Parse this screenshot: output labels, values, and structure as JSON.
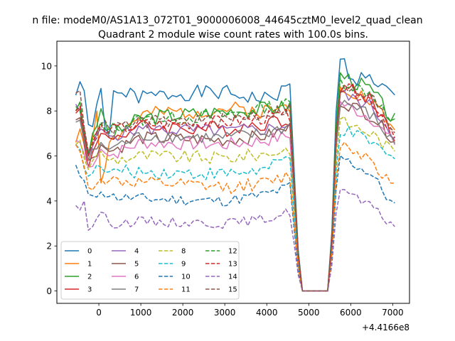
{
  "header_line": "n file: modeM0/AS1A13_072T01_9000006008_44645cztM0_level2_quad_clean",
  "chart_data": {
    "type": "line",
    "title": "Quadrant 2 module wise count rates with 100.0s bins.",
    "xlabel": "",
    "ylabel": "",
    "x_offset_label": "+4.4166e8",
    "xlim": [
      -1000,
      7400
    ],
    "ylim": [
      -0.55,
      11.1
    ],
    "xticks": [
      0,
      1000,
      2000,
      3000,
      4000,
      5000,
      6000,
      7000
    ],
    "xtick_labels": [
      "0",
      "1000",
      "2000",
      "3000",
      "4000",
      "5000",
      "6000",
      "7000"
    ],
    "yticks": [
      0,
      2,
      4,
      6,
      8,
      10
    ],
    "ytick_labels": [
      "0",
      "2",
      "4",
      "6",
      "8",
      "10"
    ],
    "grid": false,
    "legend_placement": "lower-left",
    "x_bins": {
      "start": -550,
      "step": 100,
      "count": 77
    },
    "gap": {
      "x": [
        4800,
        5500
      ],
      "value": 0.0
    },
    "series": [
      {
        "name": "0",
        "color": "#1f77b4",
        "dash": "solid",
        "base1": 8.6,
        "base2": 9.8,
        "noise": 0.35,
        "seed": 1,
        "points": [
          [
            -550,
            8.7
          ],
          [
            -450,
            9.3
          ],
          [
            -350,
            8.9
          ],
          [
            -250,
            7.4
          ],
          [
            -150,
            7.3
          ],
          [
            -50,
            8.3
          ],
          [
            50,
            9.0
          ],
          [
            150,
            7.2
          ],
          [
            250,
            7.0
          ],
          [
            350,
            8.9
          ],
          [
            450,
            8.8
          ],
          [
            1000,
            8.6
          ],
          [
            2000,
            8.8
          ],
          [
            3000,
            8.8
          ],
          [
            4000,
            8.5
          ],
          [
            4500,
            9.0
          ],
          [
            5700,
            10.6
          ],
          [
            5800,
            10.3
          ],
          [
            6000,
            9.5
          ],
          [
            6500,
            9.4
          ],
          [
            6850,
            9.1
          ],
          [
            7000,
            8.5
          ]
        ]
      },
      {
        "name": "1",
        "color": "#ff7f0e",
        "dash": "solid",
        "base1": 7.9,
        "base2": 8.7,
        "noise": 0.35,
        "seed": 2,
        "points": [
          [
            -550,
            6.6
          ],
          [
            -450,
            7.2
          ],
          [
            -250,
            6.0
          ],
          [
            -50,
            8.0
          ],
          [
            50,
            4.8
          ],
          [
            250,
            6.6
          ],
          [
            1000,
            7.8
          ],
          [
            3000,
            8.1
          ],
          [
            4000,
            8.0
          ],
          [
            4500,
            8.2
          ],
          [
            5700,
            9.3
          ],
          [
            6500,
            8.4
          ],
          [
            7000,
            7.3
          ]
        ]
      },
      {
        "name": "2",
        "color": "#2ca02c",
        "dash": "solid",
        "base1": 7.9,
        "base2": 9.0,
        "noise": 0.35,
        "seed": 3,
        "points": [
          [
            -550,
            8.0
          ],
          [
            -450,
            8.4
          ],
          [
            -250,
            6.0
          ],
          [
            50,
            8.1
          ],
          [
            250,
            6.8
          ],
          [
            1000,
            7.7
          ],
          [
            3000,
            8.0
          ],
          [
            4000,
            8.1
          ],
          [
            4500,
            8.2
          ],
          [
            5700,
            9.7
          ],
          [
            6500,
            8.9
          ],
          [
            7000,
            7.6
          ]
        ]
      },
      {
        "name": "3",
        "color": "#d62728",
        "dash": "solid",
        "base1": 7.3,
        "base2": 8.5,
        "noise": 0.35,
        "seed": 4,
        "points": [
          [
            -550,
            7.9
          ],
          [
            -450,
            8.1
          ],
          [
            -250,
            5.5
          ],
          [
            50,
            7.0
          ],
          [
            250,
            6.8
          ],
          [
            1000,
            7.3
          ],
          [
            3000,
            7.2
          ],
          [
            4000,
            7.5
          ],
          [
            4500,
            7.6
          ],
          [
            5700,
            9.2
          ],
          [
            6500,
            8.5
          ],
          [
            7000,
            7.0
          ]
        ]
      },
      {
        "name": "4",
        "color": "#9467bd",
        "dash": "solid",
        "base1": 7.1,
        "base2": 8.3,
        "noise": 0.3,
        "seed": 5,
        "points": [
          [
            -550,
            8.3
          ],
          [
            -450,
            8.0
          ],
          [
            -250,
            6.0
          ],
          [
            50,
            7.2
          ],
          [
            250,
            6.9
          ],
          [
            1000,
            7.2
          ],
          [
            3000,
            7.1
          ],
          [
            4000,
            7.2
          ],
          [
            4500,
            7.4
          ],
          [
            5700,
            8.8
          ],
          [
            6500,
            8.2
          ],
          [
            7000,
            7.0
          ]
        ]
      },
      {
        "name": "5",
        "color": "#8c564b",
        "dash": "solid",
        "base1": 6.8,
        "base2": 7.8,
        "noise": 0.3,
        "seed": 6,
        "points": [
          [
            -550,
            7.6
          ],
          [
            -450,
            7.7
          ],
          [
            -250,
            5.8
          ],
          [
            50,
            6.5
          ],
          [
            250,
            6.2
          ],
          [
            1000,
            6.8
          ],
          [
            3000,
            6.7
          ],
          [
            4000,
            6.9
          ],
          [
            4500,
            7.2
          ],
          [
            5700,
            8.5
          ],
          [
            6500,
            7.8
          ],
          [
            7000,
            6.8
          ]
        ]
      },
      {
        "name": "6",
        "color": "#e377c2",
        "dash": "solid",
        "base1": 6.6,
        "base2": 7.8,
        "noise": 0.3,
        "seed": 7,
        "points": [
          [
            -550,
            6.7
          ],
          [
            -450,
            6.6
          ],
          [
            -250,
            5.5
          ],
          [
            50,
            6.3
          ],
          [
            250,
            6.0
          ],
          [
            1000,
            6.6
          ],
          [
            3000,
            6.5
          ],
          [
            4000,
            6.7
          ],
          [
            4500,
            6.9
          ],
          [
            5700,
            8.4
          ],
          [
            6500,
            7.7
          ],
          [
            7000,
            6.6
          ]
        ]
      },
      {
        "name": "7",
        "color": "#7f7f7f",
        "dash": "solid",
        "base1": 6.9,
        "base2": 8.2,
        "noise": 0.3,
        "seed": 8,
        "points": [
          [
            -550,
            7.5
          ],
          [
            -450,
            7.6
          ],
          [
            -250,
            5.8
          ],
          [
            50,
            6.6
          ],
          [
            250,
            6.3
          ],
          [
            1000,
            6.9
          ],
          [
            3000,
            6.8
          ],
          [
            4000,
            7.0
          ],
          [
            4500,
            7.3
          ],
          [
            5700,
            8.5
          ],
          [
            6500,
            7.8
          ],
          [
            7000,
            6.6
          ]
        ]
      },
      {
        "name": "8",
        "color": "#bcbd22",
        "dash": "dashed",
        "base1": 6.0,
        "base2": 7.3,
        "noise": 0.3,
        "seed": 9,
        "points": [
          [
            -550,
            6.5
          ],
          [
            -450,
            6.7
          ],
          [
            -250,
            5.4
          ],
          [
            50,
            6.2
          ],
          [
            250,
            5.8
          ],
          [
            1000,
            6.0
          ],
          [
            3000,
            5.9
          ],
          [
            4000,
            6.1
          ],
          [
            4500,
            6.3
          ],
          [
            5700,
            7.6
          ],
          [
            6500,
            7.0
          ],
          [
            7000,
            6.2
          ]
        ]
      },
      {
        "name": "9",
        "color": "#17becf",
        "dash": "dashed",
        "base1": 5.3,
        "base2": 6.9,
        "noise": 0.3,
        "seed": 10,
        "points": [
          [
            -550,
            6.5
          ],
          [
            -450,
            6.3
          ],
          [
            -250,
            5.1
          ],
          [
            50,
            5.5
          ],
          [
            250,
            5.3
          ],
          [
            1000,
            5.3
          ],
          [
            3000,
            5.2
          ],
          [
            4000,
            5.4
          ],
          [
            4500,
            5.9
          ],
          [
            5700,
            7.2
          ],
          [
            6500,
            6.6
          ],
          [
            7000,
            5.8
          ]
        ]
      },
      {
        "name": "10",
        "color": "#1f77b4",
        "dash": "dashed",
        "base1": 4.1,
        "base2": 5.7,
        "noise": 0.25,
        "seed": 11,
        "points": [
          [
            -550,
            5.6
          ],
          [
            -450,
            5.1
          ],
          [
            -250,
            4.3
          ],
          [
            50,
            4.4
          ],
          [
            250,
            4.2
          ],
          [
            1000,
            4.1
          ],
          [
            3000,
            4.0
          ],
          [
            4000,
            4.3
          ],
          [
            4500,
            4.6
          ],
          [
            5700,
            6.0
          ],
          [
            6500,
            5.2
          ],
          [
            7000,
            3.8
          ]
        ]
      },
      {
        "name": "11",
        "color": "#ff7f0e",
        "dash": "dashed",
        "base1": 4.7,
        "base2": 6.2,
        "noise": 0.3,
        "seed": 12,
        "points": [
          [
            -550,
            6.5
          ],
          [
            -450,
            6.2
          ],
          [
            -250,
            4.6
          ],
          [
            50,
            5.0
          ],
          [
            250,
            4.9
          ],
          [
            1000,
            4.8
          ],
          [
            3000,
            4.6
          ],
          [
            4000,
            4.8
          ],
          [
            4500,
            5.1
          ],
          [
            5700,
            6.6
          ],
          [
            6500,
            5.9
          ],
          [
            7000,
            4.6
          ]
        ]
      },
      {
        "name": "12",
        "color": "#2ca02c",
        "dash": "dashed",
        "base1": 7.6,
        "base2": 8.8,
        "noise": 0.3,
        "seed": 13,
        "points": [
          [
            -550,
            8.2
          ],
          [
            -450,
            8.0
          ],
          [
            -250,
            6.1
          ],
          [
            50,
            7.5
          ],
          [
            250,
            7.2
          ],
          [
            1000,
            7.6
          ],
          [
            3000,
            7.8
          ],
          [
            4000,
            8.2
          ],
          [
            4500,
            8.3
          ],
          [
            5700,
            9.4
          ],
          [
            6500,
            8.8
          ],
          [
            7000,
            7.4
          ]
        ]
      },
      {
        "name": "13",
        "color": "#d62728",
        "dash": "dashed",
        "base1": 7.4,
        "base2": 8.6,
        "noise": 0.3,
        "seed": 14,
        "points": [
          [
            -550,
            8.0
          ],
          [
            -450,
            8.2
          ],
          [
            -250,
            6.0
          ],
          [
            50,
            7.4
          ],
          [
            250,
            7.1
          ],
          [
            1000,
            7.4
          ],
          [
            3000,
            7.5
          ],
          [
            4000,
            7.7
          ],
          [
            4500,
            7.8
          ],
          [
            5700,
            9.1
          ],
          [
            6500,
            8.5
          ],
          [
            7000,
            7.1
          ]
        ]
      },
      {
        "name": "14",
        "color": "#9467bd",
        "dash": "dashed",
        "base1": 3.1,
        "base2": 4.1,
        "noise": 0.22,
        "seed": 15,
        "points": [
          [
            -550,
            3.8
          ],
          [
            -450,
            3.6
          ],
          [
            -350,
            4.0
          ],
          [
            -250,
            2.7
          ],
          [
            50,
            3.5
          ],
          [
            250,
            3.0
          ],
          [
            1000,
            3.1
          ],
          [
            3000,
            3.0
          ],
          [
            4000,
            3.2
          ],
          [
            4500,
            3.5
          ],
          [
            5700,
            4.6
          ],
          [
            6500,
            3.7
          ],
          [
            7000,
            2.9
          ]
        ]
      },
      {
        "name": "15",
        "color": "#8c564b",
        "dash": "dashed",
        "base1": 7.5,
        "base2": 8.7,
        "noise": 0.3,
        "seed": 16,
        "points": [
          [
            -550,
            8.8
          ],
          [
            -450,
            8.9
          ],
          [
            -250,
            6.2
          ],
          [
            50,
            7.4
          ],
          [
            250,
            7.2
          ],
          [
            1000,
            7.5
          ],
          [
            3000,
            7.6
          ],
          [
            4000,
            7.9
          ],
          [
            4500,
            8.1
          ],
          [
            5700,
            9.0
          ],
          [
            6500,
            8.6
          ],
          [
            7000,
            7.2
          ]
        ]
      }
    ]
  }
}
